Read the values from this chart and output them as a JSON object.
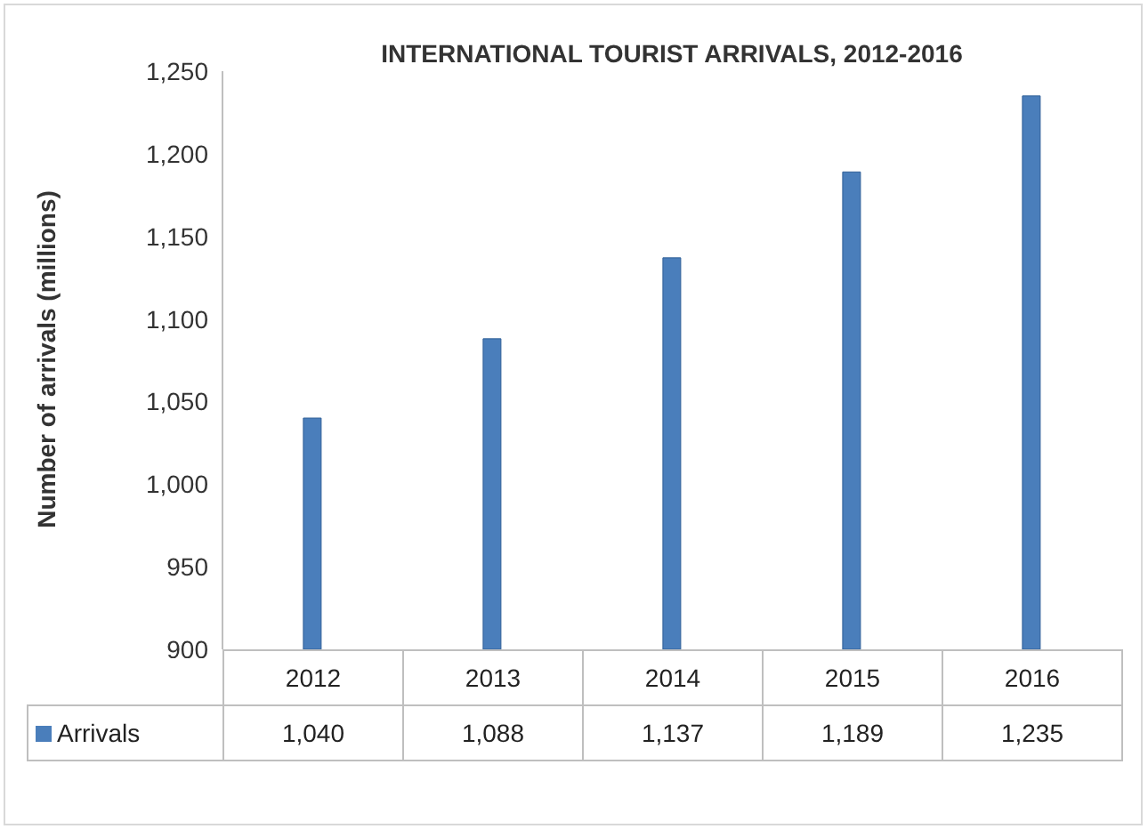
{
  "chart_data": {
    "type": "bar",
    "title": "INTERNATIONAL TOURIST ARRIVALS, 2012-2016",
    "ylabel": "Number of arrivals (millions)",
    "categories": [
      "2012",
      "2013",
      "2014",
      "2015",
      "2016"
    ],
    "series": [
      {
        "name": "Arrivals",
        "color": "#4a7ebb",
        "values": [
          1040,
          1088,
          1137,
          1189,
          1235
        ],
        "value_labels": [
          "1,040",
          "1,088",
          "1,137",
          "1,189",
          "1,235"
        ]
      }
    ],
    "ylim": [
      900,
      1250
    ],
    "yticks": [
      {
        "value": 900,
        "label": "900"
      },
      {
        "value": 950,
        "label": "950"
      },
      {
        "value": 1000,
        "label": "1,000"
      },
      {
        "value": 1050,
        "label": "1,050"
      },
      {
        "value": 1100,
        "label": "1,100"
      },
      {
        "value": 1150,
        "label": "1,150"
      },
      {
        "value": 1200,
        "label": "1,200"
      },
      {
        "value": 1250,
        "label": "1,250"
      }
    ],
    "grid": false,
    "legend": "bottom"
  }
}
